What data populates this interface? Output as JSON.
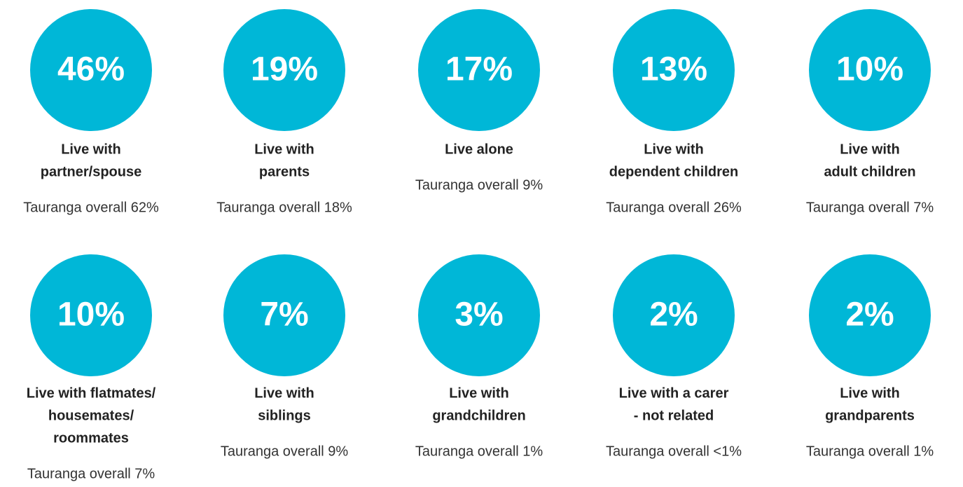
{
  "items": [
    {
      "value": "46%",
      "label": [
        "Live with",
        "partner/spouse"
      ],
      "overall": "Tauranga overall 62%"
    },
    {
      "value": "19%",
      "label": [
        "Live with",
        "parents"
      ],
      "overall": "Tauranga overall 18%"
    },
    {
      "value": "17%",
      "label": [
        "Live alone"
      ],
      "overall": "Tauranga overall 9%"
    },
    {
      "value": "13%",
      "label": [
        "Live with",
        "dependent children"
      ],
      "overall": "Tauranga overall 26%"
    },
    {
      "value": "10%",
      "label": [
        "Live with",
        "adult children"
      ],
      "overall": "Tauranga overall 7%"
    },
    {
      "value": "10%",
      "label": [
        "Live with flatmates/",
        "housemates/",
        "roommates"
      ],
      "overall": "Tauranga overall 7%"
    },
    {
      "value": "7%",
      "label": [
        "Live with",
        "siblings"
      ],
      "overall": "Tauranga overall 9%"
    },
    {
      "value": "3%",
      "label": [
        "Live with",
        "grandchildren"
      ],
      "overall": "Tauranga overall 1%"
    },
    {
      "value": "2%",
      "label": [
        "Live with a carer",
        "- not related"
      ],
      "overall": "Tauranga overall <1%"
    },
    {
      "value": "2%",
      "label": [
        "Live with",
        "grandparents"
      ],
      "overall": "Tauranga overall 1%"
    }
  ]
}
